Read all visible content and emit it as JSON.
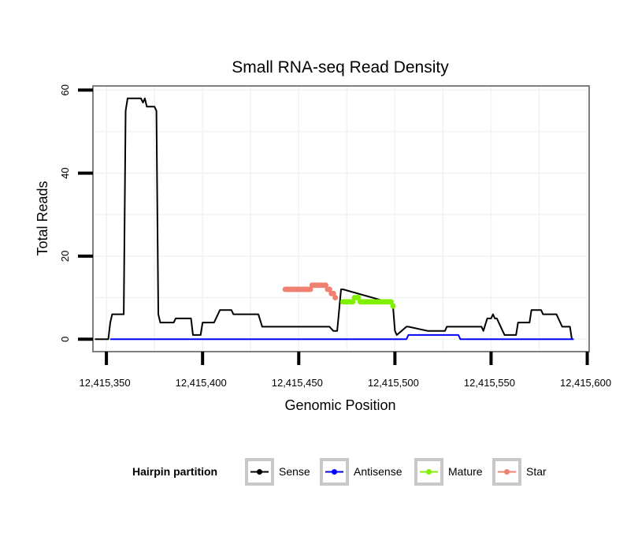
{
  "chart_data": {
    "type": "line",
    "title": "Small RNA-seq Read Density",
    "xlabel": "Genomic Position",
    "ylabel": "Total Reads",
    "xlim": [
      12415343,
      12415601
    ],
    "ylim": [
      -3,
      61
    ],
    "x_ticks": [
      12415350,
      12415400,
      12415450,
      12415500,
      12415550,
      12415600
    ],
    "x_tick_labels": [
      "12,415,350",
      "12,415,400",
      "12,415,450",
      "12,415,500",
      "12,415,550",
      "12,415,600"
    ],
    "y_ticks": [
      0,
      20,
      40,
      60
    ],
    "y_tick_labels": [
      "0",
      "20",
      "40",
      "60"
    ],
    "grid": true,
    "legend": {
      "title": "Hairpin partition",
      "placement": "bottom",
      "entries": [
        "Sense",
        "Antisense",
        "Mature",
        "Star"
      ]
    },
    "series": [
      {
        "name": "Sense",
        "color": "#000000",
        "line_only": true,
        "x": [
          12415344,
          12415351,
          12415352,
          12415353,
          12415356,
          12415359,
          12415360,
          12415361,
          12415362,
          12415368,
          12415369,
          12415370,
          12415371,
          12415375,
          12415376,
          12415377,
          12415378,
          12415380,
          12415385,
          12415386,
          12415394,
          12415395,
          12415398,
          12415399,
          12415400,
          12415405,
          12415406,
          12415409,
          12415411,
          12415415,
          12415416,
          12415422,
          12415423,
          12415428,
          12415429,
          12415431,
          12415432,
          12415466,
          12415468,
          12415470,
          12415472,
          12415473,
          12415496,
          12415497,
          12415499,
          12415500,
          12415501,
          12415506,
          12415507,
          12415517,
          12415518,
          12415523,
          12415524,
          12415526,
          12415527,
          12415545,
          12415546,
          12415548,
          12415549,
          12415550,
          12415551,
          12415552,
          12415553,
          12415556,
          12415557,
          12415563,
          12415564,
          12415569,
          12415570,
          12415571,
          12415572,
          12415576,
          12415577,
          12415584,
          12415585,
          12415587,
          12415588,
          12415589,
          12415591,
          12415592
        ],
        "values": [
          0,
          0,
          4,
          6,
          6,
          6,
          55,
          58,
          58,
          58,
          57,
          58,
          56,
          56,
          55,
          6,
          4,
          4,
          4,
          5,
          5,
          1,
          1,
          1,
          4,
          4,
          4,
          7,
          7,
          7,
          6,
          6,
          6,
          6,
          6,
          3,
          3,
          3,
          2,
          2,
          12,
          12,
          9,
          9,
          8,
          2,
          1,
          3,
          3,
          2,
          2,
          2,
          2,
          2,
          3,
          3,
          2,
          5,
          5,
          5,
          6,
          5,
          5,
          2,
          1,
          1,
          4,
          4,
          4,
          7,
          7,
          7,
          6,
          6,
          5,
          3,
          3,
          3,
          3,
          0
        ]
      },
      {
        "name": "Antisense",
        "color": "#0000ff",
        "line_only": true,
        "x": [
          12415352,
          12415506,
          12415507,
          12415533,
          12415534,
          12415593
        ],
        "values": [
          0,
          0,
          1,
          1,
          0,
          0
        ]
      },
      {
        "name": "Mature",
        "color": "#80f000",
        "line_only": false,
        "x": [
          12415473,
          12415474,
          12415475,
          12415476,
          12415477,
          12415478,
          12415479,
          12415480,
          12415481,
          12415482,
          12415483,
          12415484,
          12415485,
          12415486,
          12415487,
          12415488,
          12415489,
          12415490,
          12415491,
          12415492,
          12415493,
          12415494,
          12415495,
          12415496,
          12415497,
          12415498,
          12415499
        ],
        "values": [
          9,
          9,
          9,
          9,
          9,
          9,
          10,
          10,
          10,
          9,
          9,
          9,
          9,
          9,
          9,
          9,
          9,
          9,
          9,
          9,
          9,
          9,
          9,
          9,
          9,
          9,
          8
        ]
      },
      {
        "name": "Star",
        "color": "#f08070",
        "line_only": false,
        "x": [
          12415443,
          12415444,
          12415445,
          12415446,
          12415447,
          12415448,
          12415449,
          12415450,
          12415451,
          12415452,
          12415453,
          12415454,
          12415455,
          12415456,
          12415457,
          12415458,
          12415459,
          12415460,
          12415461,
          12415462,
          12415463,
          12415464,
          12415465,
          12415466,
          12415467,
          12415468,
          12415469
        ],
        "values": [
          12,
          12,
          12,
          12,
          12,
          12,
          12,
          12,
          12,
          12,
          12,
          12,
          12,
          12,
          13,
          13,
          13,
          13,
          13,
          13,
          13,
          13,
          12,
          12,
          11,
          11,
          10
        ]
      }
    ]
  }
}
